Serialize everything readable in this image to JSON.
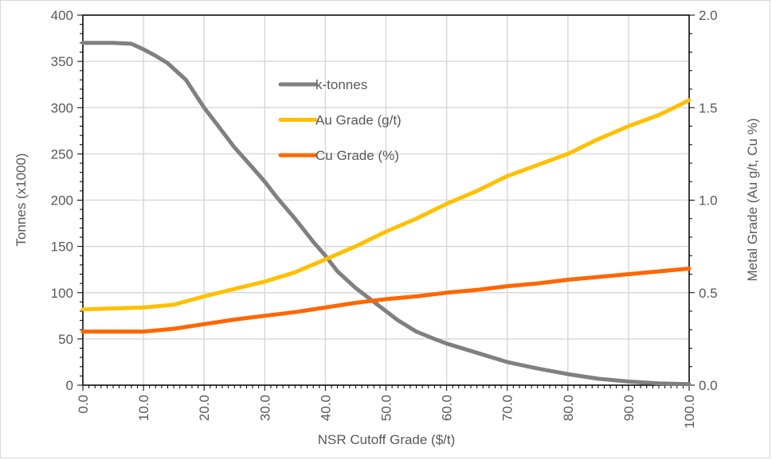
{
  "chart_data": {
    "type": "line",
    "title": "",
    "xlabel": "NSR Cutoff Grade ($/t)",
    "ylabel": "Tonnes (x1000)",
    "y2label": "Metal Grade (Au g/t, Cu %)",
    "xlim": [
      0,
      100
    ],
    "ylim": [
      0,
      400
    ],
    "y2lim": [
      0,
      2.0
    ],
    "grid": true,
    "legend_position": "upper-center",
    "x_ticks": [
      "0.0",
      "10.0",
      "20.0",
      "30.0",
      "40.0",
      "50.0",
      "60.0",
      "70.0",
      "80.0",
      "90.0",
      "100.0"
    ],
    "y_ticks": [
      "0",
      "50",
      "100",
      "150",
      "200",
      "250",
      "300",
      "350",
      "400"
    ],
    "y2_ticks": [
      "0.0",
      "0.5",
      "1.0",
      "1.5",
      "2.0"
    ],
    "series": [
      {
        "name": "k-tonnes",
        "axis": "left",
        "color": "#808080",
        "x": [
          0,
          5,
          8,
          10,
          12,
          14,
          15,
          17,
          20,
          22,
          25,
          28,
          30,
          32,
          35,
          38,
          40,
          42,
          45,
          48,
          50,
          52,
          55,
          58,
          60,
          65,
          70,
          75,
          80,
          85,
          90,
          95,
          100
        ],
        "y": [
          370,
          370,
          369,
          363,
          356,
          348,
          342,
          330,
          300,
          283,
          257,
          235,
          220,
          203,
          180,
          155,
          140,
          123,
          105,
          90,
          80,
          70,
          58,
          50,
          45,
          35,
          25,
          18,
          12,
          7,
          4,
          2,
          1
        ]
      },
      {
        "name": "Au Grade (g/t)",
        "axis": "right",
        "color": "#FFC000",
        "x": [
          0,
          10,
          15,
          20,
          25,
          30,
          35,
          40,
          45,
          50,
          55,
          60,
          65,
          70,
          75,
          80,
          85,
          90,
          95,
          100
        ],
        "y": [
          0.41,
          0.42,
          0.435,
          0.48,
          0.52,
          0.56,
          0.61,
          0.68,
          0.75,
          0.83,
          0.9,
          0.98,
          1.05,
          1.13,
          1.19,
          1.25,
          1.33,
          1.4,
          1.46,
          1.54
        ]
      },
      {
        "name": "Cu Grade (%)",
        "axis": "right",
        "color": "#FF6600",
        "x": [
          0,
          10,
          15,
          20,
          25,
          30,
          35,
          40,
          45,
          50,
          55,
          60,
          65,
          70,
          75,
          80,
          85,
          90,
          95,
          100
        ],
        "y": [
          0.29,
          0.29,
          0.305,
          0.33,
          0.355,
          0.375,
          0.395,
          0.42,
          0.445,
          0.465,
          0.48,
          0.5,
          0.515,
          0.535,
          0.55,
          0.57,
          0.585,
          0.6,
          0.615,
          0.63
        ]
      }
    ]
  }
}
